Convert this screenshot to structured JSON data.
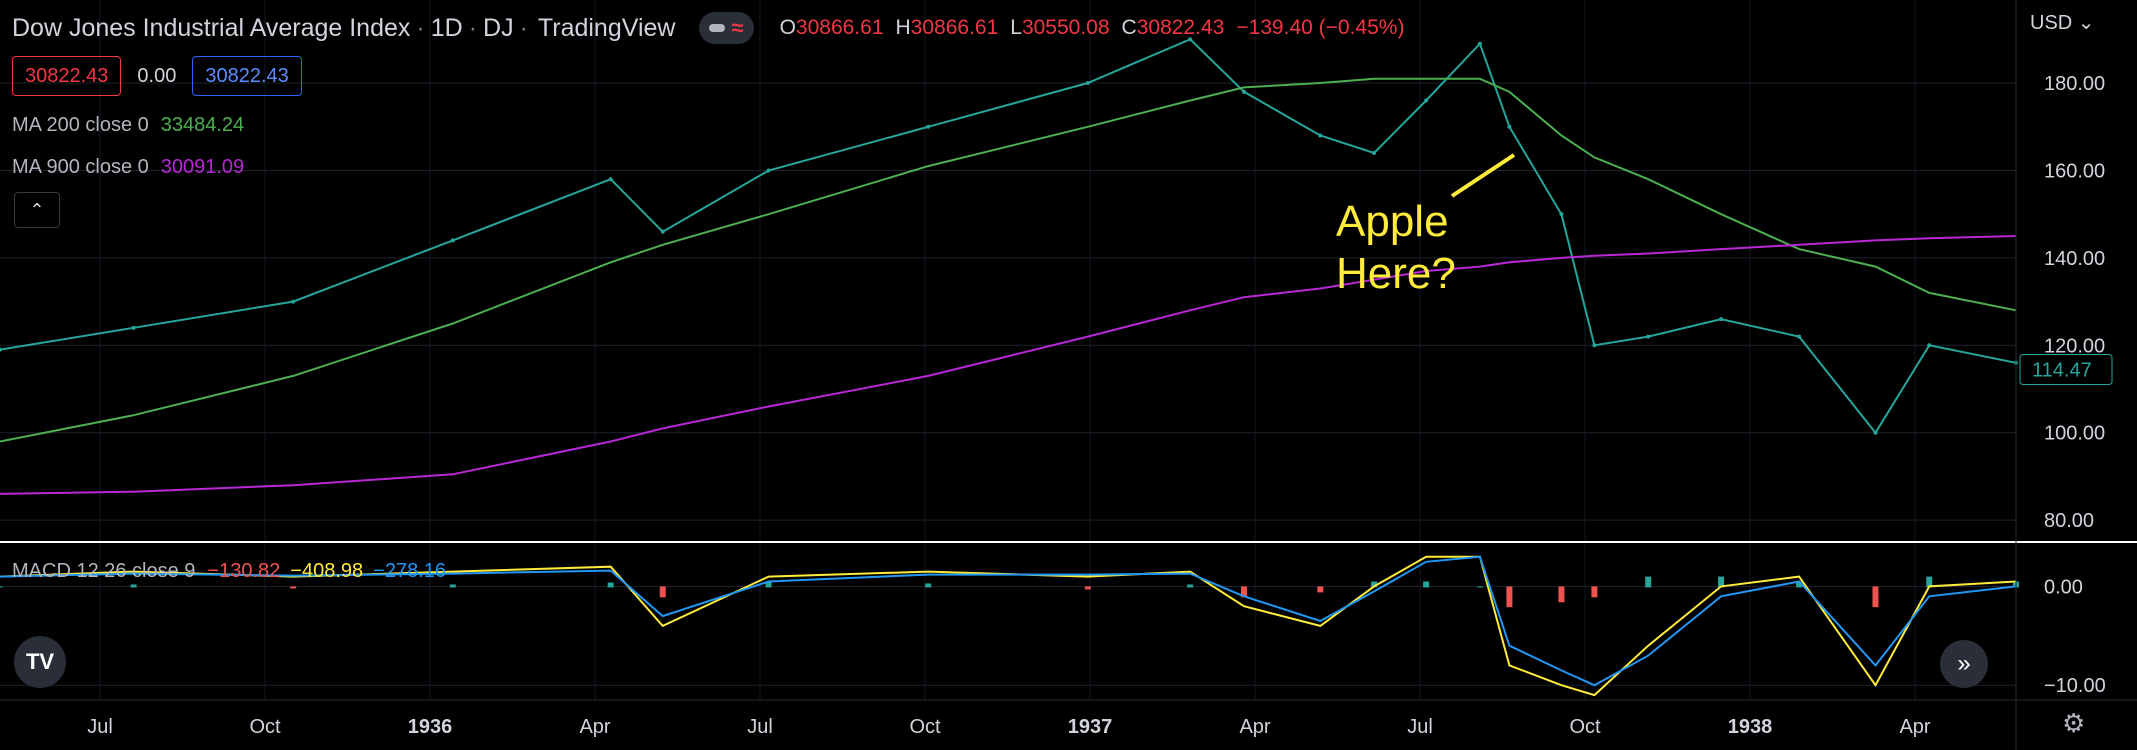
{
  "header": {
    "title": "Dow Jones Industrial Average Index",
    "interval": "1D",
    "exchange": "DJ",
    "source": "TradingView",
    "ohlc": [
      {
        "k": "O",
        "v": "30866.61"
      },
      {
        "k": "H",
        "v": "30866.61"
      },
      {
        "k": "L",
        "v": "30550.08"
      },
      {
        "k": "C",
        "v": "30822.43"
      }
    ],
    "change": "−139.40 (−0.45%)"
  },
  "price_boxes": {
    "sell": "30822.43",
    "spread": "0.00",
    "buy": "30822.43"
  },
  "indicators": {
    "ma200": {
      "label": "MA 200 close 0",
      "value": "33484.24",
      "color": "#4caf50"
    },
    "ma900": {
      "label": "MA 900 close 0",
      "value": "30091.09",
      "color": "#b927d6"
    },
    "macd": {
      "label": "MACD 12 26 close 9",
      "histogram": "−130.82",
      "macd": "−408.98",
      "signal": "−278.16"
    }
  },
  "currency": "USD",
  "annotation": {
    "line1": "Apple",
    "line2": "Here?"
  },
  "chart_data": {
    "type": "line",
    "price_axis": {
      "ticks": [
        80,
        100,
        120,
        140,
        160,
        180
      ],
      "labels": [
        "80.00",
        "100.00",
        "120.00",
        "140.00",
        "160.00",
        "180.00"
      ],
      "ylim": [
        75,
        199
      ],
      "last_price": "114.47"
    },
    "macd_axis": {
      "ticks": [
        0,
        -10
      ],
      "labels": [
        "0.00",
        "−10.00"
      ],
      "ylim": [
        -11.5,
        4.5
      ]
    },
    "time_axis": {
      "labels": [
        "Jul",
        "Oct",
        "1936",
        "Apr",
        "Jul",
        "Oct",
        "1937",
        "Apr",
        "Jul",
        "Oct",
        "1938",
        "Apr"
      ]
    },
    "x": [
      "1935-04-15",
      "1935-07-01",
      "1935-10-01",
      "1936-01-01",
      "1936-04-01",
      "1936-05-01",
      "1936-07-01",
      "1936-10-01",
      "1937-01-01",
      "1937-03-01",
      "1937-04-01",
      "1937-05-15",
      "1937-06-15",
      "1937-07-15",
      "1937-08-15",
      "1937-09-01",
      "1937-10-01",
      "1937-10-20",
      "1937-11-20",
      "1938-01-01",
      "1938-02-15",
      "1938-03-31",
      "1938-05-01",
      "1938-06-20"
    ],
    "series": [
      {
        "values": [
          119,
          124,
          130,
          144,
          158,
          146,
          160,
          170,
          180,
          190,
          178,
          168,
          164,
          176,
          189,
          170,
          150,
          120,
          122,
          126,
          122,
          100,
          120,
          116
        ]
      },
      {
        "values": [
          98,
          104,
          113,
          125,
          139,
          143,
          150,
          161,
          170,
          176,
          179,
          180,
          181,
          181,
          181,
          178,
          168,
          163,
          158,
          150,
          142,
          138,
          132,
          128
        ]
      },
      {
        "values": [
          86,
          86.5,
          88,
          90.5,
          98,
          101,
          106,
          113,
          122,
          128,
          131,
          133,
          135,
          137,
          138,
          139,
          140,
          140.5,
          141,
          142,
          143,
          144,
          144.5,
          145
        ]
      }
    ],
    "macd": {
      "macd_line": [
        1,
        1.5,
        1,
        1.5,
        2,
        -4,
        1,
        1.5,
        1,
        1.5,
        -2,
        -4,
        0,
        3,
        3,
        -8,
        -10,
        -11,
        -6,
        0,
        1,
        -10,
        0,
        0.5
      ],
      "signal_line": [
        1,
        1.3,
        1.1,
        1.3,
        1.6,
        -3,
        0.5,
        1.2,
        1.2,
        1.3,
        -1,
        -3.5,
        -0.5,
        2.5,
        3,
        -6,
        -8.5,
        -10,
        -7,
        -1,
        0.5,
        -8,
        -1,
        0
      ]
    }
  }
}
